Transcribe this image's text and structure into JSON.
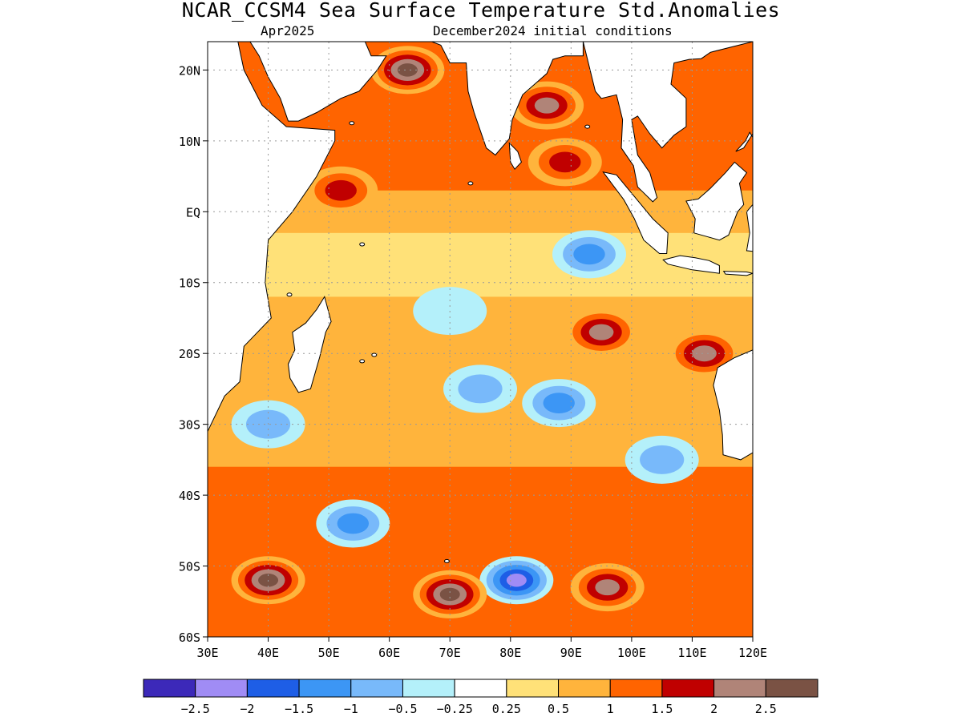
{
  "title": "NCAR_CCSM4 Sea Surface Temperature Std.Anomalies",
  "subtitle_left": "Apr2025",
  "subtitle_right": "December2024 initial conditions",
  "map": {
    "lon_range": [
      30,
      120
    ],
    "lat_range": [
      -60,
      24
    ],
    "lat_ticks": [
      {
        "value": 20,
        "label": "20N"
      },
      {
        "value": 10,
        "label": "10N"
      },
      {
        "value": 0,
        "label": "EQ"
      },
      {
        "value": -10,
        "label": "10S"
      },
      {
        "value": -20,
        "label": "20S"
      },
      {
        "value": -30,
        "label": "30S"
      },
      {
        "value": -40,
        "label": "40S"
      },
      {
        "value": -50,
        "label": "50S"
      },
      {
        "value": -60,
        "label": "60S"
      }
    ],
    "lon_ticks": [
      {
        "value": 30,
        "label": "30E"
      },
      {
        "value": 40,
        "label": "40E"
      },
      {
        "value": 50,
        "label": "50E"
      },
      {
        "value": 60,
        "label": "60E"
      },
      {
        "value": 70,
        "label": "70E"
      },
      {
        "value": 80,
        "label": "80E"
      },
      {
        "value": 90,
        "label": "90E"
      },
      {
        "value": 100,
        "label": "100E"
      },
      {
        "value": 110,
        "label": "110E"
      },
      {
        "value": 120,
        "label": "120E"
      }
    ],
    "gridlines": true
  },
  "colorbar": {
    "colors": [
      "#3c29b9",
      "#a08cf5",
      "#1e5ee6",
      "#3c96f5",
      "#78b9fa",
      "#b4f0fa",
      "#ffffff",
      "#ffe178",
      "#ffb43c",
      "#ff6400",
      "#c00000",
      "#b08478",
      "#7a5244"
    ],
    "boundaries": [
      "-2.5",
      "-2",
      "-1.5",
      "-1",
      "-0.5",
      "-0.25",
      "0.25",
      "0.5",
      "1",
      "1.5",
      "2",
      "2.5"
    ]
  },
  "anomaly_regions": [
    {
      "lon": 63,
      "lat": 20,
      "value": 2.6
    },
    {
      "lon": 86,
      "lat": 15,
      "value": 2.2
    },
    {
      "lon": 89,
      "lat": 7,
      "value": 2.1
    },
    {
      "lon": 52,
      "lat": 3,
      "value": 2.1
    },
    {
      "lon": 93,
      "lat": -6,
      "value": -1.2
    },
    {
      "lon": 95,
      "lat": -17,
      "value": 2.2
    },
    {
      "lon": 112,
      "lat": -20,
      "value": 2.3
    },
    {
      "lon": 88,
      "lat": -27,
      "value": -1.4
    },
    {
      "lon": 75,
      "lat": -25,
      "value": -0.8
    },
    {
      "lon": 70,
      "lat": -14,
      "value": -0.4
    },
    {
      "lon": 105,
      "lat": -35,
      "value": -1.1
    },
    {
      "lon": 54,
      "lat": -44,
      "value": -1.2
    },
    {
      "lon": 81,
      "lat": -52,
      "value": -2.4
    },
    {
      "lon": 40,
      "lat": -52,
      "value": 2.6
    },
    {
      "lon": 70,
      "lat": -54,
      "value": 2.6
    },
    {
      "lon": 96,
      "lat": -53,
      "value": 2.4
    },
    {
      "lon": 40,
      "lat": -30,
      "value": -0.8
    }
  ]
}
